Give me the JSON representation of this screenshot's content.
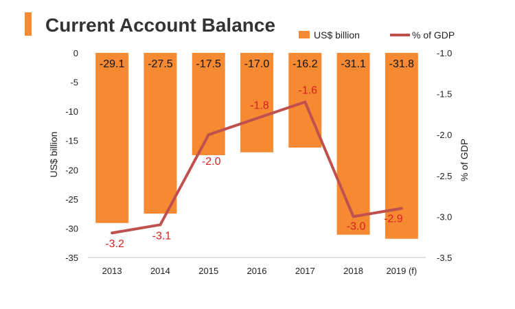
{
  "chart_data": {
    "type": "bar",
    "title": "Current Account Balance",
    "categories": [
      "2013",
      "2014",
      "2015",
      "2016",
      "2017",
      "2018",
      "2019 (f)"
    ],
    "series": [
      {
        "name": "US$ billion",
        "type": "bar",
        "axis": "left",
        "values": [
          -29.1,
          -27.5,
          -17.5,
          -17.0,
          -16.2,
          -31.1,
          -31.8
        ],
        "labels": [
          "-29.1",
          "-27.5",
          "-17.5",
          "-17.0",
          "-16.2",
          "-31.1",
          "-31.8"
        ],
        "color": "#F58A32"
      },
      {
        "name": "% of GDP",
        "type": "line",
        "axis": "right",
        "values": [
          -3.2,
          -3.1,
          -2.0,
          -1.8,
          -1.6,
          -3.0,
          -2.9
        ],
        "labels": [
          "-3.2",
          "-3.1",
          "-2.0",
          "-1.8",
          "-1.6",
          "-3.0",
          "-2.9"
        ],
        "color": "#C0504D"
      }
    ],
    "ylabel": "US$ billion",
    "y2label": "% of GDP",
    "ylim": [
      -35,
      0
    ],
    "y2lim": [
      -3.5,
      -1.0
    ],
    "yticks": [
      "0",
      "-5",
      "-10",
      "-15",
      "-20",
      "-25",
      "-30",
      "-35"
    ],
    "y2ticks": [
      "-1.0",
      "-1.5",
      "-2.0",
      "-2.5",
      "-3.0",
      "-3.5"
    ],
    "grid": false,
    "legend": "top-right",
    "line_label_color": "#D62020",
    "title_marker_color": "#F58A32"
  }
}
